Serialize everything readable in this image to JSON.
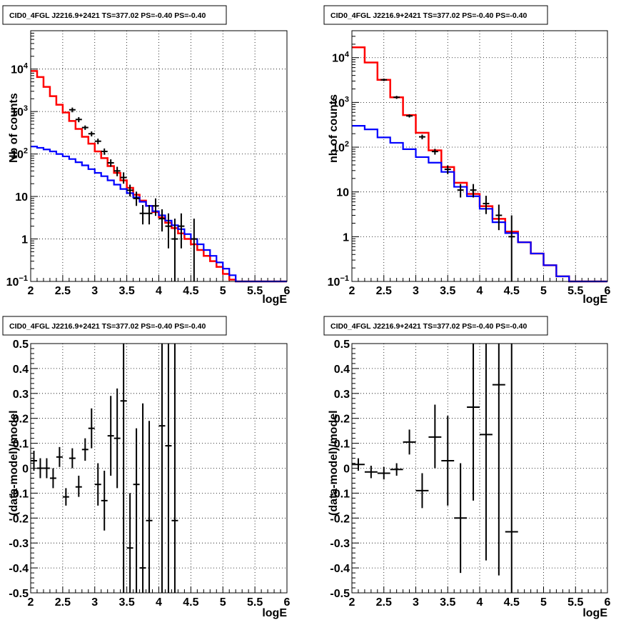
{
  "chart_data": [
    {
      "type": "line",
      "panel": "top-left",
      "title": "CID0_4FGL J2216.9+2421 TS=377.02 PS=-0.40 PS=-0.40",
      "xlabel": "logE",
      "ylabel": "Nb of counts",
      "xlim": [
        2,
        6
      ],
      "ylim": [
        0.1,
        80000
      ],
      "yscale": "log",
      "grid": true,
      "x_ticks": [
        "2",
        "2.5",
        "3",
        "3.5",
        "4",
        "4.5",
        "5",
        "5.5",
        "6"
      ],
      "y_ticks": [
        {
          "v": 0.1,
          "label": "10",
          "sup": "−1"
        },
        {
          "v": 1,
          "label": "1",
          "sup": ""
        },
        {
          "v": 10,
          "label": "10",
          "sup": ""
        },
        {
          "v": 100,
          "label": "10",
          "sup": "2"
        },
        {
          "v": 1000,
          "label": "10",
          "sup": "3"
        },
        {
          "v": 10000,
          "label": "10",
          "sup": "4"
        }
      ],
      "bin_edges": [
        2.0,
        2.1,
        2.2,
        2.3,
        2.4,
        2.5,
        2.6,
        2.7,
        2.8,
        2.9,
        3.0,
        3.1,
        3.2,
        3.3,
        3.4,
        3.5,
        3.6,
        3.7,
        3.8,
        3.9,
        4.0,
        4.1,
        4.2,
        4.3,
        4.4,
        4.5,
        4.6,
        4.7,
        4.8,
        4.9,
        5.0,
        5.1,
        5.2,
        5.3,
        5.4,
        5.5,
        5.6,
        5.7,
        5.8,
        5.9,
        6.0
      ],
      "series": [
        {
          "color": "#ff0000",
          "kind": "hist",
          "values": [
            9000,
            6500,
            3800,
            2300,
            1450,
            950,
            600,
            390,
            255,
            175,
            115,
            80,
            52,
            36,
            24,
            16,
            11,
            8,
            6,
            4.3,
            3.2,
            2.4,
            1.8,
            1.35,
            1.0,
            0.75,
            0.55,
            0.4,
            0.3,
            0.22,
            0.15,
            0.11,
            0.1,
            0.1,
            0.1,
            0.1,
            0.1,
            0.1,
            0.1,
            0.1
          ]
        },
        {
          "color": "#0000ff",
          "kind": "hist",
          "values": [
            150,
            140,
            128,
            115,
            100,
            88,
            76,
            64,
            54,
            44,
            36,
            30,
            24,
            19,
            15,
            12,
            9.5,
            7.5,
            6,
            4.5,
            3.6,
            2.7,
            2.1,
            1.7,
            1.3,
            1.0,
            0.75,
            0.55,
            0.4,
            0.28,
            0.2,
            0.14,
            0.1,
            0.1,
            0.1,
            0.1,
            0.1,
            0.1,
            0.1,
            0.1
          ]
        },
        {
          "color": "#000000",
          "kind": "points",
          "x": [
            2.65,
            2.75,
            2.85,
            2.95,
            3.05,
            3.15,
            3.25,
            3.35,
            3.45,
            3.55,
            3.65,
            3.75,
            3.85,
            3.95,
            4.05,
            4.15,
            4.25,
            4.35,
            4.55
          ],
          "y": [
            1100,
            650,
            420,
            300,
            200,
            115,
            62,
            40,
            28,
            14,
            9,
            4,
            4,
            6,
            3,
            2,
            1,
            2,
            1
          ],
          "ylo": [
            960,
            560,
            370,
            260,
            170,
            96,
            50,
            30,
            20,
            10,
            6,
            2.2,
            2.2,
            3.5,
            1.5,
            0.6,
            0.1,
            0.6,
            0.1
          ],
          "yhi": [
            1240,
            740,
            470,
            340,
            230,
            135,
            75,
            50,
            37,
            19,
            13,
            6.3,
            6.3,
            9,
            5,
            4,
            3,
            4,
            3
          ]
        }
      ]
    },
    {
      "type": "line",
      "panel": "top-right",
      "title": "CID0_4FGL J2216.9+2421 TS=377.02 PS=-0.40 PS=-0.40",
      "xlabel": "logE",
      "ylabel": "nb of counts",
      "xlim": [
        2,
        6
      ],
      "ylim": [
        0.1,
        40000
      ],
      "yscale": "log",
      "grid": true,
      "x_ticks": [
        "2",
        "2.5",
        "3",
        "3.5",
        "4",
        "4.5",
        "5",
        "5.5",
        "6"
      ],
      "y_ticks": [
        {
          "v": 0.1,
          "label": "10",
          "sup": "−1"
        },
        {
          "v": 1,
          "label": "1",
          "sup": ""
        },
        {
          "v": 10,
          "label": "10",
          "sup": ""
        },
        {
          "v": 100,
          "label": "10",
          "sup": "2"
        },
        {
          "v": 1000,
          "label": "10",
          "sup": "3"
        },
        {
          "v": 10000,
          "label": "10",
          "sup": "4"
        }
      ],
      "bin_edges": [
        2.0,
        2.2,
        2.4,
        2.6,
        2.8,
        3.0,
        3.2,
        3.4,
        3.6,
        3.8,
        4.0,
        4.2,
        4.4,
        4.6,
        4.8,
        5.0,
        5.2,
        5.4,
        5.6,
        5.8,
        6.0
      ],
      "series": [
        {
          "color": "#ff0000",
          "kind": "hist",
          "values": [
            17000,
            7800,
            3200,
            1300,
            520,
            210,
            85,
            36,
            16,
            9,
            4.8,
            2.5,
            1.3,
            0.75,
            0.42,
            0.23,
            0.13,
            0.1,
            0.1,
            0.1
          ]
        },
        {
          "color": "#0000ff",
          "kind": "hist",
          "values": [
            300,
            250,
            165,
            125,
            90,
            60,
            45,
            28,
            13,
            8,
            4.2,
            2.1,
            1.2,
            0.75,
            0.42,
            0.23,
            0.13,
            0.1,
            0.1,
            0.1
          ]
        },
        {
          "color": "#000000",
          "kind": "points",
          "x": [
            2.5,
            2.7,
            2.9,
            3.1,
            3.3,
            3.5,
            3.7,
            3.9,
            4.1,
            4.3,
            4.5
          ],
          "y": [
            3200,
            1300,
            500,
            170,
            80,
            32,
            11,
            11,
            5.5,
            3,
            1
          ],
          "ylo": [
            3000,
            1200,
            460,
            150,
            68,
            25,
            7.5,
            7.5,
            3.2,
            1.4,
            0.1
          ],
          "yhi": [
            3400,
            1400,
            540,
            190,
            92,
            39,
            15,
            15,
            8.2,
            5.2,
            3
          ]
        }
      ]
    },
    {
      "type": "scatter",
      "panel": "bottom-left",
      "title": "CID0_4FGL J2216.9+2421 TS=377.02 PS=-0.40 PS=-0.40",
      "xlabel": "logE",
      "ylabel": "(data-model)/model",
      "xlim": [
        2,
        6
      ],
      "ylim": [
        -0.5,
        0.5
      ],
      "grid": true,
      "x_ticks": [
        "2",
        "2.5",
        "3",
        "3.5",
        "4",
        "4.5",
        "5",
        "5.5",
        "6"
      ],
      "y_ticks": [
        "−0.5",
        "−0.4",
        "−0.3",
        "−0.2",
        "−0.1",
        "0",
        "0.1",
        "0.2",
        "0.3",
        "0.4",
        "0.5"
      ],
      "x_halfwidth": 0.05,
      "series": [
        {
          "color": "#000000",
          "x": [
            2.05,
            2.15,
            2.25,
            2.35,
            2.45,
            2.55,
            2.65,
            2.75,
            2.85,
            2.95,
            3.05,
            3.15,
            3.25,
            3.35,
            3.45,
            3.55,
            3.65,
            3.75,
            3.85,
            4.05,
            4.15,
            4.25
          ],
          "y": [
            0.03,
            0.0,
            0.0,
            -0.04,
            0.045,
            -0.115,
            0.04,
            -0.075,
            0.075,
            0.16,
            -0.065,
            -0.13,
            0.13,
            0.12,
            0.27,
            -0.32,
            -0.065,
            -0.4,
            -0.21,
            0.17,
            0.09,
            -0.21
          ],
          "ylo": [
            -0.01,
            -0.04,
            -0.04,
            -0.08,
            0.005,
            -0.15,
            0.0,
            -0.115,
            0.03,
            0.08,
            -0.15,
            -0.25,
            -0.03,
            -0.08,
            -0.5,
            -0.5,
            -0.5,
            -0.5,
            -0.5,
            -0.5,
            -0.5,
            -0.5
          ],
          "yhi": [
            0.07,
            0.04,
            0.04,
            0.0,
            0.085,
            -0.08,
            0.08,
            -0.03,
            0.12,
            0.24,
            0.02,
            -0.01,
            0.29,
            0.32,
            0.5,
            -0.1,
            0.16,
            0.26,
            0.19,
            0.5,
            0.5,
            0.5
          ]
        }
      ]
    },
    {
      "type": "scatter",
      "panel": "bottom-right",
      "title": "CID0_4FGL J2216.9+2421 TS=377.02 PS=-0.40 PS=-0.40",
      "xlabel": "logE",
      "ylabel": "(data-model)/model",
      "xlim": [
        2,
        6
      ],
      "ylim": [
        -0.5,
        0.5
      ],
      "grid": true,
      "x_ticks": [
        "2",
        "2.5",
        "3",
        "3.5",
        "4",
        "4.5",
        "5",
        "5.5",
        "6"
      ],
      "y_ticks": [
        "−0.5",
        "−0.4",
        "−0.3",
        "−0.2",
        "−0.1",
        "0",
        "0.1",
        "0.2",
        "0.3",
        "0.4",
        "0.5"
      ],
      "x_halfwidth": 0.1,
      "series": [
        {
          "color": "#000000",
          "x": [
            2.1,
            2.3,
            2.5,
            2.7,
            2.9,
            3.1,
            3.3,
            3.5,
            3.7,
            3.9,
            4.1,
            4.3,
            4.5
          ],
          "y": [
            0.015,
            -0.015,
            -0.02,
            -0.005,
            0.105,
            -0.09,
            0.125,
            0.03,
            -0.2,
            0.245,
            0.135,
            0.335,
            -0.255
          ],
          "ylo": [
            -0.01,
            -0.04,
            -0.045,
            -0.03,
            0.055,
            -0.16,
            0.0,
            -0.15,
            -0.42,
            -0.13,
            -0.37,
            -0.43,
            -0.5
          ],
          "yhi": [
            0.04,
            0.01,
            0.005,
            0.02,
            0.155,
            -0.02,
            0.255,
            0.21,
            0.02,
            0.5,
            0.5,
            0.5,
            0.5
          ]
        }
      ]
    }
  ]
}
